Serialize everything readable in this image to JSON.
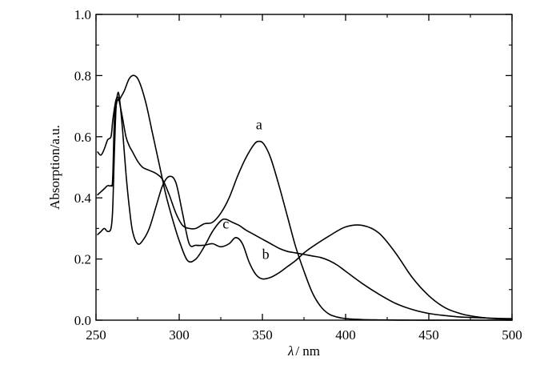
{
  "chart_data": {
    "type": "line",
    "title": "",
    "xlabel_symbol": "λ",
    "xlabel_unit": "/ nm",
    "ylabel": "Absorption/a.u.",
    "xlim": [
      250,
      500
    ],
    "ylim": [
      0.0,
      1.0
    ],
    "x_ticks": [
      250,
      300,
      350,
      400,
      450,
      500
    ],
    "x_tick_labels": [
      "250",
      "300",
      "350",
      "400",
      "450",
      "500"
    ],
    "y_ticks": [
      0.0,
      0.2,
      0.4,
      0.6,
      0.8,
      1.0
    ],
    "y_tick_labels": [
      "0.0",
      "0.2",
      "0.4",
      "0.6",
      "0.8",
      "1.0"
    ],
    "grid": false,
    "series": [
      {
        "name": "a",
        "label_pos": [
          348,
          0.625
        ],
        "x": [
          251,
          253,
          255,
          257,
          259,
          260,
          261,
          262,
          263,
          264,
          266,
          268,
          270,
          272,
          275,
          278,
          282,
          286,
          290,
          294,
          298,
          302,
          306,
          310,
          315,
          320,
          325,
          330,
          335,
          340,
          345,
          348,
          351,
          355,
          360,
          365,
          370,
          375,
          380,
          385,
          390,
          395,
          400,
          410,
          420,
          440,
          460,
          480,
          500
        ],
        "y": [
          0.55,
          0.54,
          0.56,
          0.59,
          0.6,
          0.65,
          0.69,
          0.72,
          0.73,
          0.715,
          0.66,
          0.6,
          0.57,
          0.55,
          0.52,
          0.5,
          0.49,
          0.48,
          0.46,
          0.41,
          0.35,
          0.31,
          0.3,
          0.3,
          0.315,
          0.32,
          0.35,
          0.4,
          0.47,
          0.53,
          0.575,
          0.585,
          0.575,
          0.53,
          0.44,
          0.34,
          0.24,
          0.16,
          0.09,
          0.045,
          0.02,
          0.01,
          0.005,
          0.002,
          0.001,
          0.0,
          0.0,
          0.0,
          0.0
        ]
      },
      {
        "name": "b",
        "label_pos": [
          352,
          0.2
        ],
        "x": [
          251,
          253,
          255,
          257,
          259,
          260,
          261,
          262,
          263,
          264,
          266,
          268,
          270,
          272,
          275,
          278,
          282,
          286,
          290,
          294,
          298,
          302,
          306,
          310,
          315,
          320,
          325,
          330,
          334,
          338,
          342,
          346,
          350,
          355,
          360,
          365,
          370,
          375,
          380,
          390,
          400,
          410,
          420,
          430,
          440,
          450,
          460,
          470,
          480,
          490,
          500
        ],
        "y": [
          0.28,
          0.29,
          0.3,
          0.29,
          0.3,
          0.36,
          0.54,
          0.69,
          0.74,
          0.73,
          0.62,
          0.48,
          0.37,
          0.29,
          0.25,
          0.26,
          0.3,
          0.37,
          0.44,
          0.47,
          0.45,
          0.35,
          0.25,
          0.245,
          0.245,
          0.25,
          0.24,
          0.25,
          0.27,
          0.25,
          0.19,
          0.15,
          0.135,
          0.14,
          0.155,
          0.175,
          0.195,
          0.22,
          0.24,
          0.275,
          0.305,
          0.31,
          0.285,
          0.22,
          0.14,
          0.08,
          0.04,
          0.02,
          0.01,
          0.005,
          0.003
        ]
      },
      {
        "name": "c",
        "label_pos": [
          328,
          0.3
        ],
        "x": [
          251,
          253,
          255,
          257,
          259,
          260,
          261,
          262,
          263,
          264,
          265,
          267,
          270,
          273,
          276,
          280,
          284,
          288,
          292,
          296,
          300,
          305,
          310,
          315,
          320,
          325,
          328,
          332,
          336,
          340,
          345,
          350,
          355,
          360,
          365,
          370,
          375,
          380,
          385,
          390,
          395,
          400,
          410,
          420,
          430,
          440,
          450,
          460,
          470,
          480,
          490,
          500
        ],
        "y": [
          0.41,
          0.42,
          0.43,
          0.44,
          0.44,
          0.46,
          0.65,
          0.7,
          0.72,
          0.72,
          0.73,
          0.75,
          0.79,
          0.8,
          0.78,
          0.71,
          0.61,
          0.51,
          0.41,
          0.33,
          0.26,
          0.195,
          0.2,
          0.24,
          0.29,
          0.325,
          0.33,
          0.32,
          0.31,
          0.295,
          0.28,
          0.265,
          0.25,
          0.235,
          0.225,
          0.22,
          0.215,
          0.21,
          0.205,
          0.195,
          0.18,
          0.16,
          0.12,
          0.085,
          0.055,
          0.035,
          0.022,
          0.015,
          0.01,
          0.008,
          0.006,
          0.005
        ]
      }
    ]
  }
}
